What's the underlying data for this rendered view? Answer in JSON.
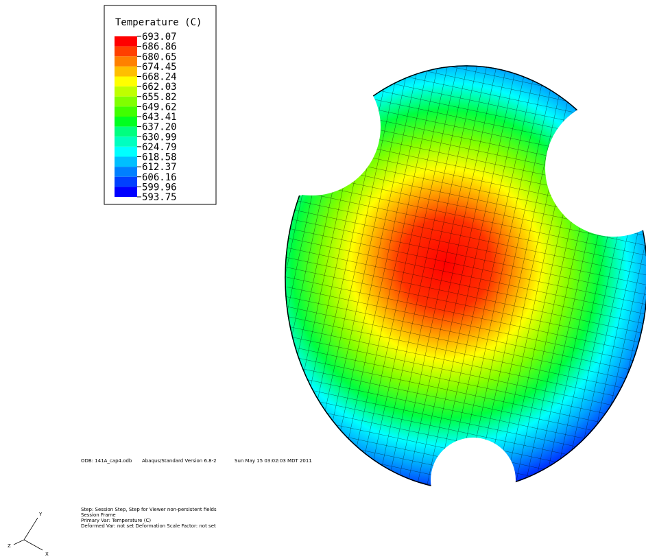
{
  "legend": {
    "title": "Temperature (C)",
    "values": [
      "693.07",
      "686.86",
      "680.65",
      "674.45",
      "668.24",
      "662.03",
      "655.82",
      "649.62",
      "643.41",
      "637.20",
      "630.99",
      "624.79",
      "618.58",
      "612.37",
      "606.16",
      "599.96",
      "593.75"
    ],
    "colors": [
      "#ff0000",
      "#ff4000",
      "#ff8000",
      "#ffbf00",
      "#ffff00",
      "#bfff00",
      "#80ff00",
      "#40ff00",
      "#00ff20",
      "#00ff80",
      "#00ffc0",
      "#00ffff",
      "#00bfff",
      "#0080ff",
      "#0040ff",
      "#0000ff"
    ]
  },
  "info": {
    "odb": "ODB: 141A_cap4.odb",
    "version": "Abaqus/Standard Version 6.8-2",
    "date": "Sun May 15 03:02:03 MDT 2011"
  },
  "state": {
    "lines": [
      "Step: Session Step, Step for Viewer non-persistent fields",
      "Session Frame",
      "Primary Var: Temperature (C)",
      "Deformed Var: not set   Deformation Scale Factor: not set"
    ]
  },
  "triad": {
    "y": "Y",
    "z": "Z",
    "x": "X"
  }
}
